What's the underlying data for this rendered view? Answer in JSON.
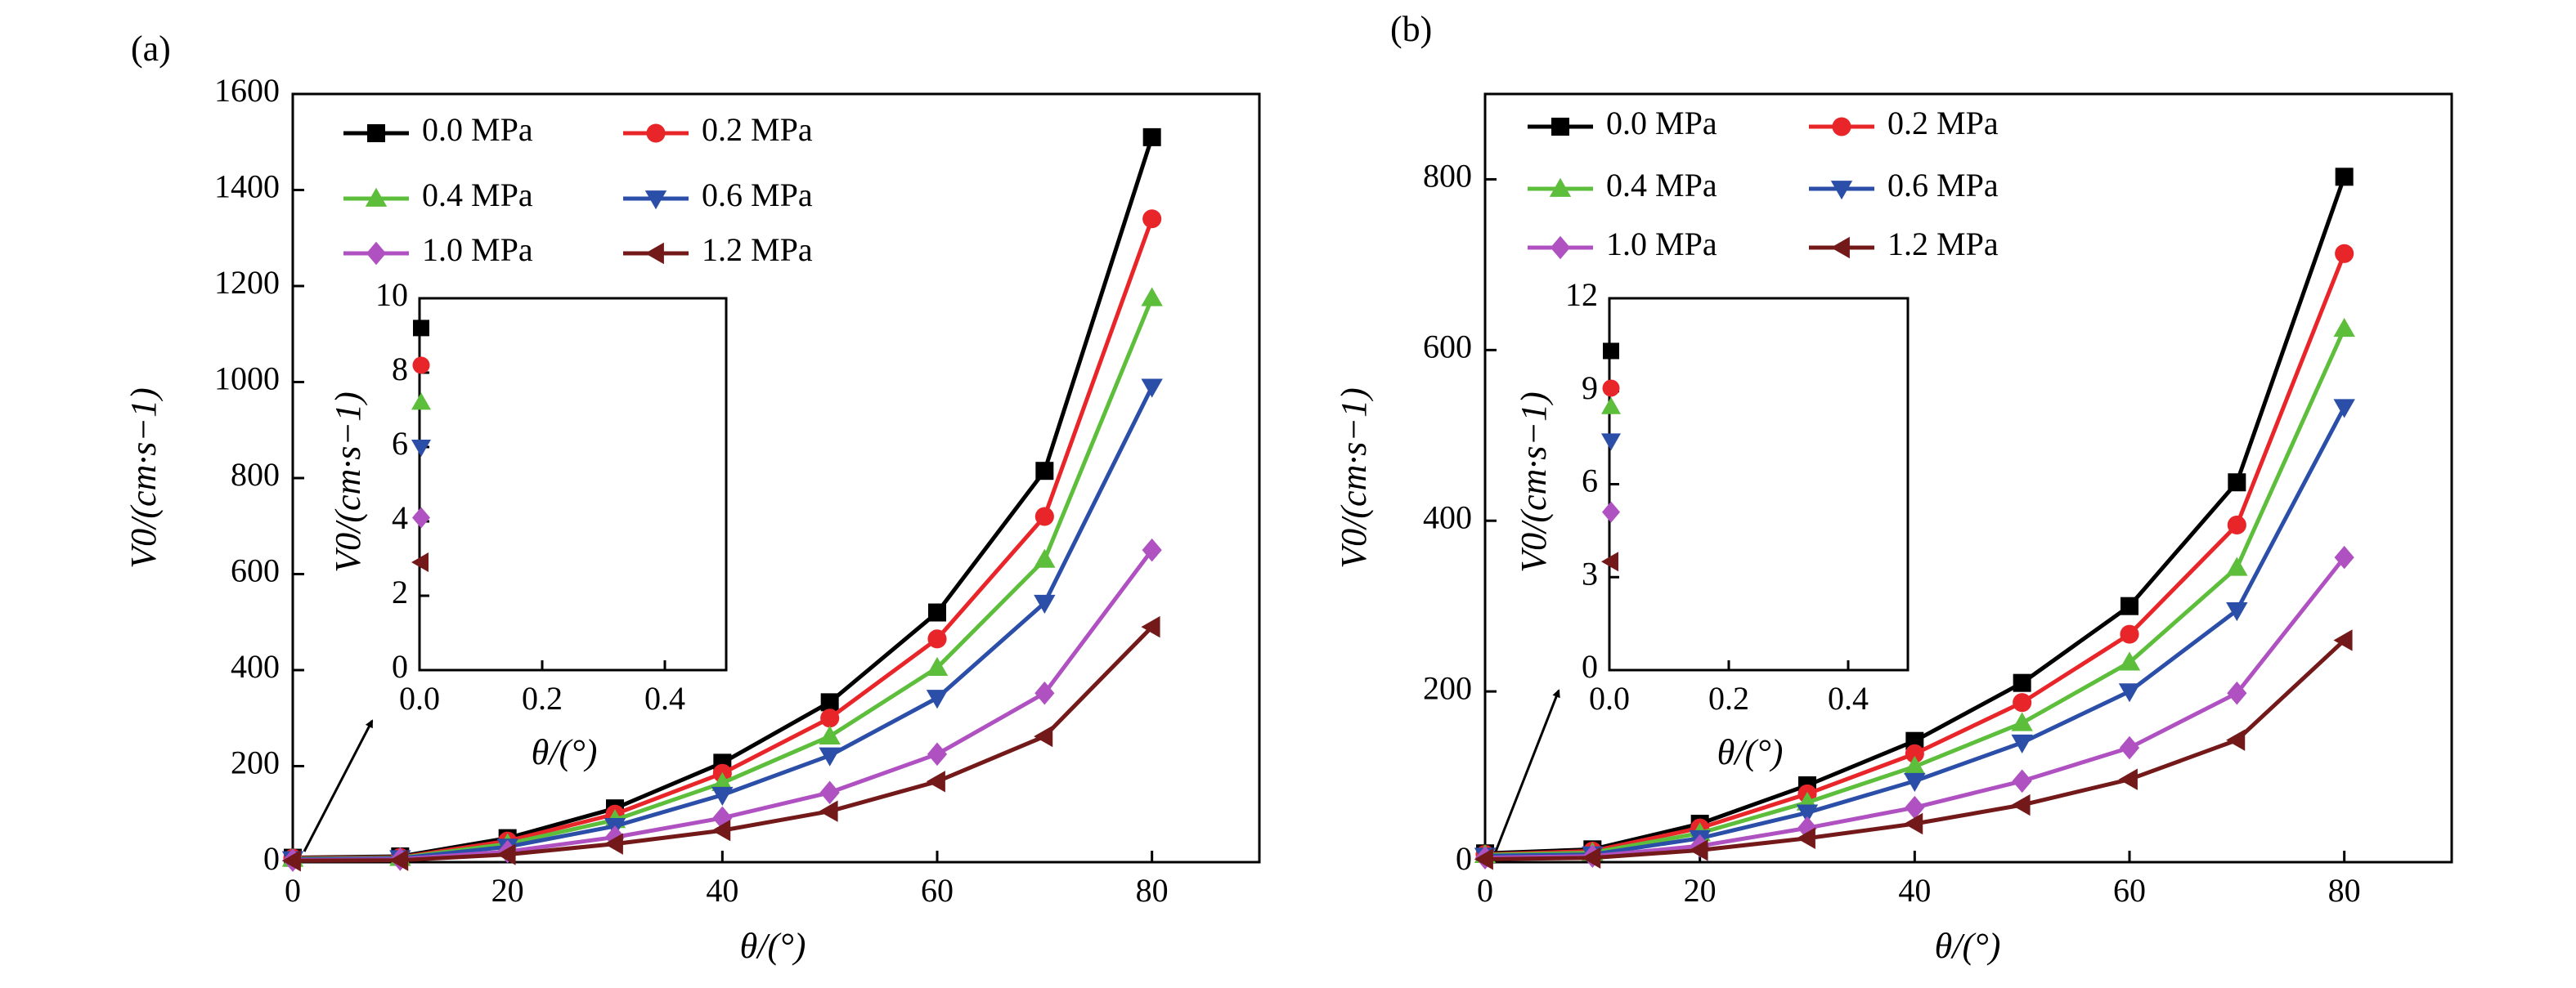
{
  "chart_data": [
    {
      "type": "line",
      "panel_label": "(a)",
      "xlabel": "θ/(°)",
      "ylabel": "V0/(cm·s−1)",
      "xlim": [
        0,
        90
      ],
      "ylim": [
        0,
        1600
      ],
      "xticks": [
        0,
        20,
        40,
        60,
        80
      ],
      "yticks": [
        0,
        200,
        400,
        600,
        800,
        1000,
        1200,
        1400,
        1600
      ],
      "x": [
        0,
        10,
        20,
        30,
        40,
        50,
        60,
        70,
        80
      ],
      "legend_position": "top-left",
      "series": [
        {
          "name": "0.0 MPa",
          "color": "#000000",
          "marker": "square",
          "values": [
            9.2,
            12,
            50,
            112,
            207,
            333,
            520,
            815,
            1510
          ]
        },
        {
          "name": "0.2 MPa",
          "color": "#e8262a",
          "marker": "circle",
          "values": [
            8.2,
            10,
            44,
            100,
            185,
            300,
            465,
            720,
            1340
          ]
        },
        {
          "name": "0.4 MPa",
          "color": "#5dbe3b",
          "marker": "triangle-up",
          "values": [
            7.2,
            9,
            38,
            88,
            165,
            262,
            405,
            630,
            1175
          ]
        },
        {
          "name": "0.6 MPa",
          "color": "#2b4ea8",
          "marker": "triangle-down",
          "values": [
            6.0,
            8,
            32,
            75,
            140,
            222,
            342,
            540,
            990
          ]
        },
        {
          "name": "1.0 MPa",
          "color": "#b051c2",
          "marker": "diamond",
          "values": [
            4.1,
            6,
            22,
            52,
            92,
            145,
            225,
            352,
            650
          ]
        },
        {
          "name": "1.2 MPa",
          "color": "#74191a",
          "marker": "triangle-left",
          "values": [
            2.9,
            4,
            16,
            38,
            66,
            106,
            168,
            262,
            490
          ]
        }
      ],
      "inset": {
        "xlabel": "θ/(°)",
        "ylabel": "V0/(cm·s−1)",
        "xlim": [
          0,
          0.5
        ],
        "ylim": [
          0,
          10
        ],
        "xticks": [
          0.0,
          0.2,
          0.4
        ],
        "yticks": [
          0,
          2,
          4,
          6,
          8,
          10
        ],
        "values": [
          9.2,
          8.2,
          7.2,
          6.0,
          4.1,
          2.9
        ]
      }
    },
    {
      "type": "line",
      "panel_label": "(b)",
      "xlabel": "θ/(°)",
      "ylabel": "V0/(cm·s−1)",
      "xlim": [
        0,
        90
      ],
      "ylim": [
        0,
        900
      ],
      "xticks": [
        0,
        20,
        40,
        60,
        80
      ],
      "yticks": [
        0,
        200,
        400,
        600,
        800
      ],
      "x": [
        0,
        10,
        20,
        30,
        40,
        50,
        60,
        70,
        80
      ],
      "legend_position": "top-left",
      "series": [
        {
          "name": "0.0 MPa",
          "color": "#000000",
          "marker": "square",
          "values": [
            10.3,
            15,
            45,
            90,
            142,
            210,
            300,
            445,
            803
          ]
        },
        {
          "name": "0.2 MPa",
          "color": "#e8262a",
          "marker": "circle",
          "values": [
            9.1,
            13,
            40,
            80,
            127,
            187,
            267,
            395,
            713
          ]
        },
        {
          "name": "0.4 MPa",
          "color": "#5dbe3b",
          "marker": "triangle-up",
          "values": [
            8.5,
            11,
            34,
            70,
            112,
            163,
            234,
            345,
            625
          ]
        },
        {
          "name": "0.6 MPa",
          "color": "#2b4ea8",
          "marker": "triangle-down",
          "values": [
            7.4,
            9,
            28,
            58,
            95,
            140,
            200,
            295,
            533
          ]
        },
        {
          "name": "1.0 MPa",
          "color": "#b051c2",
          "marker": "diamond",
          "values": [
            5.1,
            7,
            19,
            40,
            64,
            95,
            134,
            198,
            357
          ]
        },
        {
          "name": "1.2 MPa",
          "color": "#74191a",
          "marker": "triangle-left",
          "values": [
            3.5,
            5,
            14,
            28,
            45,
            67,
            97,
            143,
            260
          ]
        }
      ],
      "inset": {
        "xlabel": "θ/(°)",
        "ylabel": "V0/(cm·s−1)",
        "xlim": [
          0,
          0.5
        ],
        "ylim": [
          0,
          12
        ],
        "xticks": [
          0.0,
          0.2,
          0.4
        ],
        "yticks": [
          0,
          3,
          6,
          9,
          12
        ],
        "values": [
          10.3,
          9.1,
          8.5,
          7.4,
          5.1,
          3.5
        ]
      }
    }
  ]
}
